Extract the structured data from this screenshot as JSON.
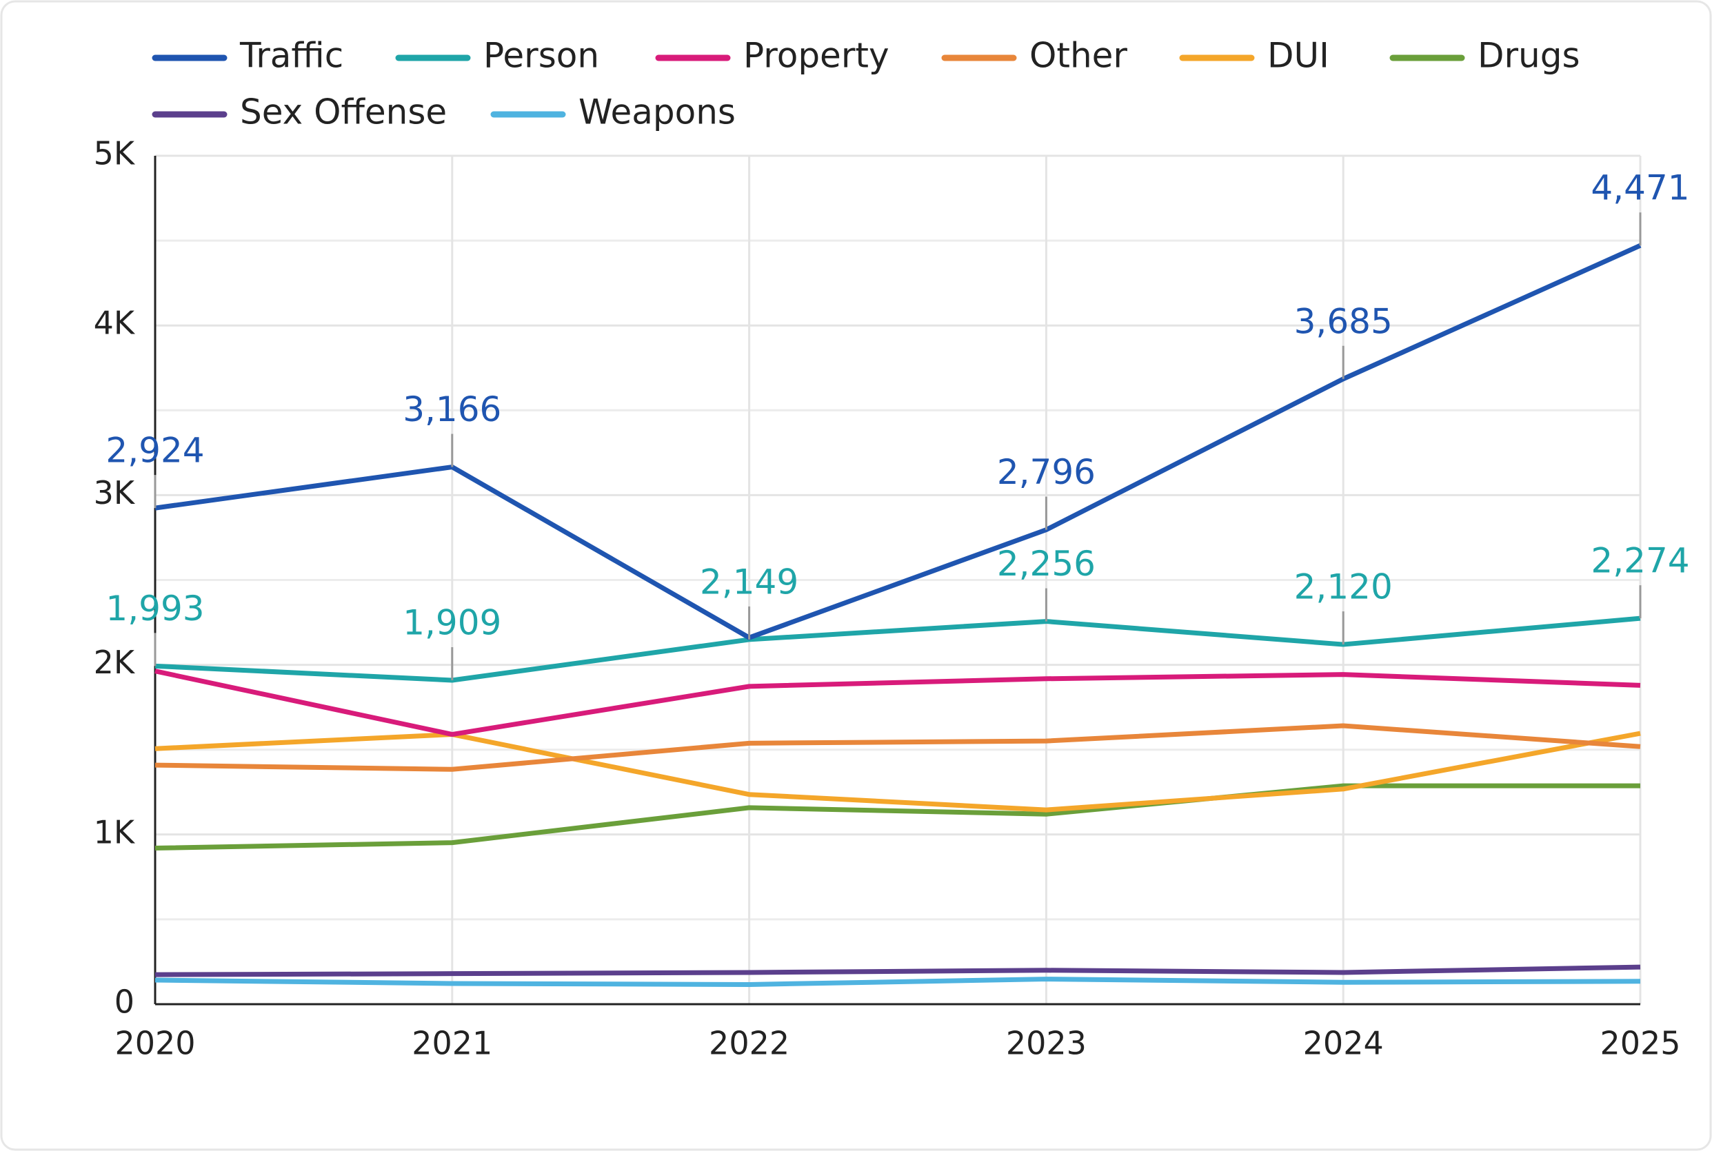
{
  "chart_data": {
    "type": "line",
    "categories": [
      "2020",
      "2021",
      "2022",
      "2023",
      "2024",
      "2025"
    ],
    "series": [
      {
        "name": "Traffic",
        "color": "#1f55b0",
        "values": [
          2924,
          3166,
          2160,
          2796,
          3685,
          4471
        ],
        "value_labels": [
          "2,924",
          "3,166",
          null,
          "2,796",
          "3,685",
          "4,471"
        ]
      },
      {
        "name": "Person",
        "color": "#1fa5a8",
        "values": [
          1993,
          1909,
          2149,
          2256,
          2120,
          2274
        ],
        "value_labels": [
          "1,993",
          "1,909",
          "2,149",
          "2,256",
          "2,120",
          "2,274"
        ]
      },
      {
        "name": "Property",
        "color": "#d81b7a",
        "values": [
          1963,
          1590,
          1873,
          1918,
          1943,
          1879
        ]
      },
      {
        "name": "Other",
        "color": "#e8863a",
        "values": [
          1409,
          1384,
          1538,
          1551,
          1641,
          1518
        ]
      },
      {
        "name": "DUI",
        "color": "#f4a62a",
        "values": [
          1506,
          1590,
          1236,
          1145,
          1268,
          1596
        ]
      },
      {
        "name": "Drugs",
        "color": "#6a9f3a",
        "values": [
          920,
          952,
          1158,
          1120,
          1287,
          1287
        ]
      },
      {
        "name": "Sex Offense",
        "color": "#5b3f8c",
        "values": [
          174,
          180,
          187,
          200,
          187,
          219
        ]
      },
      {
        "name": "Weapons",
        "color": "#4fb3e0",
        "values": [
          142,
          122,
          116,
          148,
          129,
          135
        ]
      }
    ],
    "ylim": [
      0,
      5000
    ],
    "yticks": [
      0,
      {
        "value": 1000,
        "label": "1K"
      },
      {
        "value": 2000,
        "label": "2K"
      },
      {
        "value": 3000,
        "label": "3K"
      },
      {
        "value": 4000,
        "label": "4K"
      },
      {
        "value": 5000,
        "label": "5K"
      }
    ],
    "grid": true
  }
}
